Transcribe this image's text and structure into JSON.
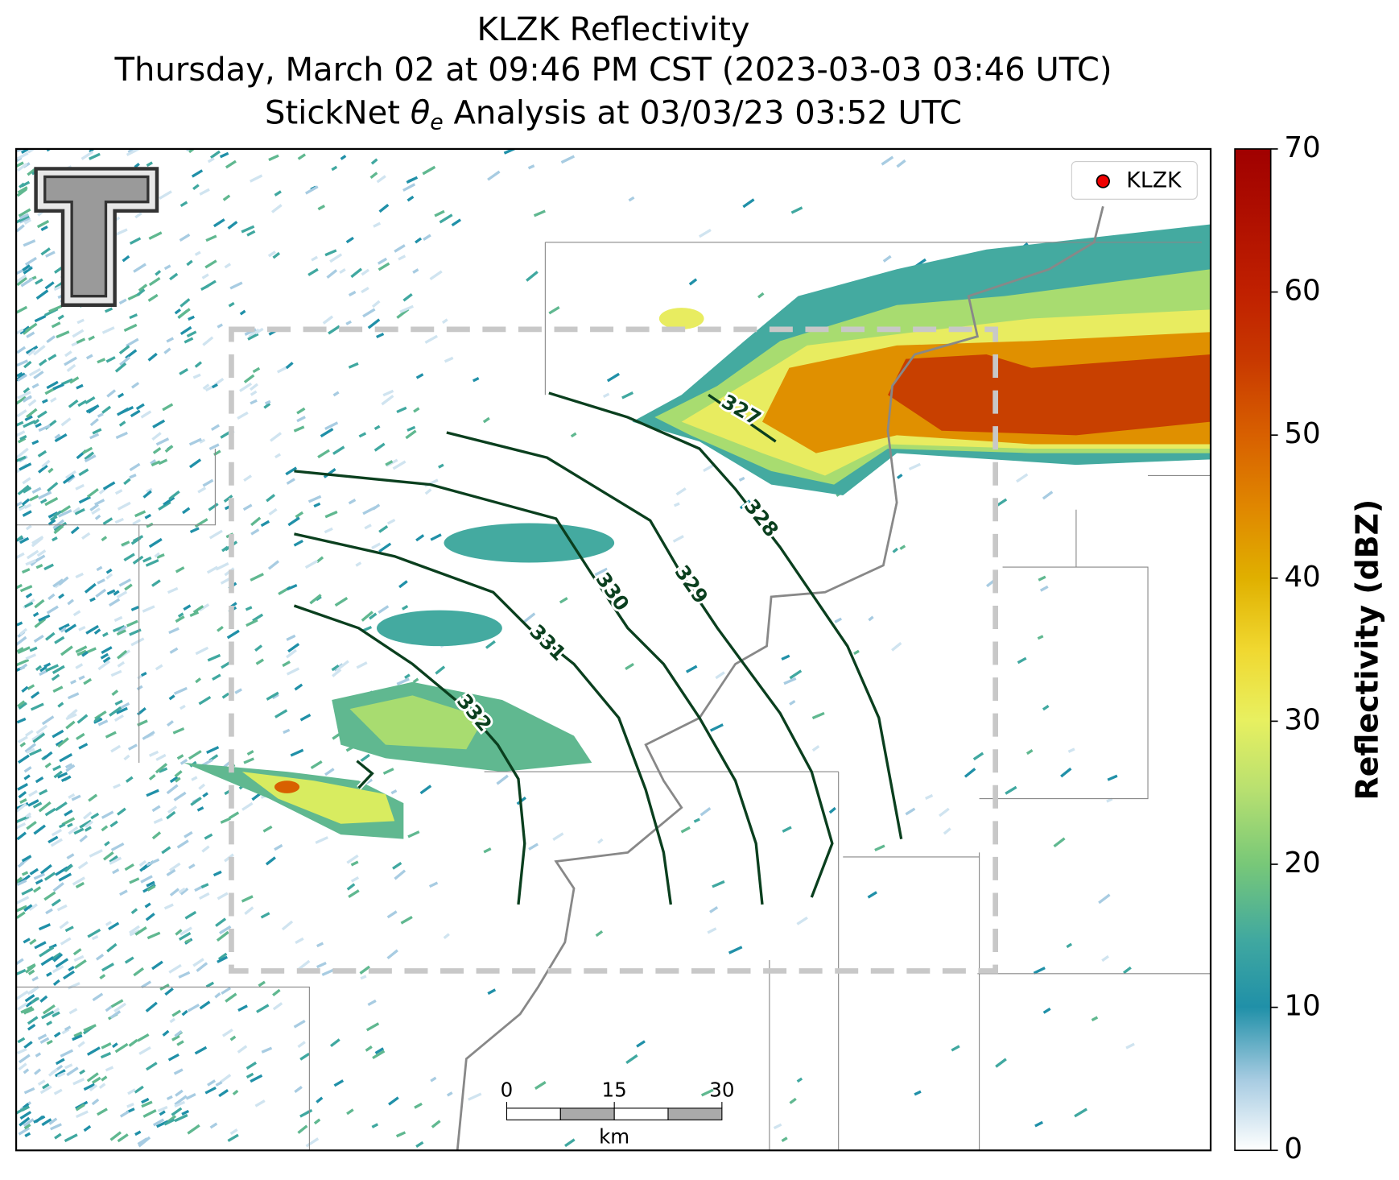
{
  "title": [
    "KLZK Reflectivity",
    "Thursday, March 02 at 09:46 PM CST (2023-03-03 03:46 UTC)"
  ],
  "subtitle": {
    "before": "StickNet ",
    "symbol": "θ",
    "subscript": "e",
    "after": " Analysis at 03/03/23 03:52 UTC"
  },
  "legend": [
    "KLZK"
  ],
  "contour_labels": [
    327,
    328,
    329,
    330,
    331,
    332
  ],
  "scale_bar": {
    "ticks": [
      0,
      15,
      30
    ],
    "unit": "km"
  },
  "colorbar": {
    "label": "Reflectivity (dBZ)",
    "lim": [
      0,
      70
    ],
    "ticks": [
      0,
      10,
      20,
      30,
      40,
      50,
      60,
      70
    ]
  }
}
